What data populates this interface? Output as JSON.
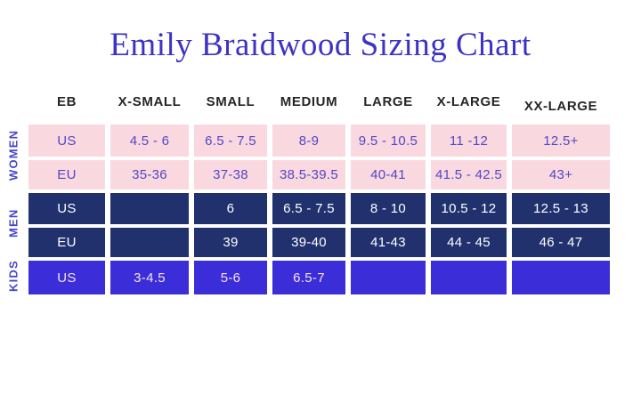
{
  "title": "Emily Braidwood Sizing Chart",
  "chart_data": {
    "type": "table",
    "title": "Emily Braidwood Sizing Chart",
    "columns": [
      "EB",
      "X-SMALL",
      "SMALL",
      "MEDIUM",
      "LARGE",
      "X-LARGE",
      "XX-LARGE"
    ],
    "groups": [
      {
        "label": "WOMEN",
        "rows": [
          {
            "cells": [
              "US",
              "4.5 - 6",
              "6.5 - 7.5",
              "8-9",
              "9.5 - 10.5",
              "11 -12",
              "12.5+"
            ]
          },
          {
            "cells": [
              "EU",
              "35-36",
              "37-38",
              "38.5-39.5",
              "40-41",
              "41.5 - 42.5",
              "43+"
            ]
          }
        ]
      },
      {
        "label": "MEN",
        "rows": [
          {
            "cells": [
              "US",
              "",
              "6",
              "6.5 - 7.5",
              "8 - 10",
              "10.5 - 12",
              "12.5 - 13"
            ]
          },
          {
            "cells": [
              "EU",
              "",
              "39",
              "39-40",
              "41-43",
              "44 - 45",
              "46 - 47"
            ]
          }
        ]
      },
      {
        "label": "KIDS",
        "rows": [
          {
            "cells": [
              "US",
              "3-4.5",
              "5-6",
              "6.5-7",
              "",
              "",
              ""
            ]
          }
        ]
      }
    ]
  },
  "colors": {
    "background": "#ffffff",
    "title_text": "#3c33c6",
    "header_text": "#262626",
    "group_label_text": "#4946c8",
    "women_cell_bg": "#f9d8df",
    "women_cell_text": "#5347c5",
    "men_cell_bg": "#20316e",
    "men_cell_text": "#ffffff",
    "kids_cell_bg": "#3b2ed8",
    "kids_cell_text": "#f6e3e8"
  }
}
